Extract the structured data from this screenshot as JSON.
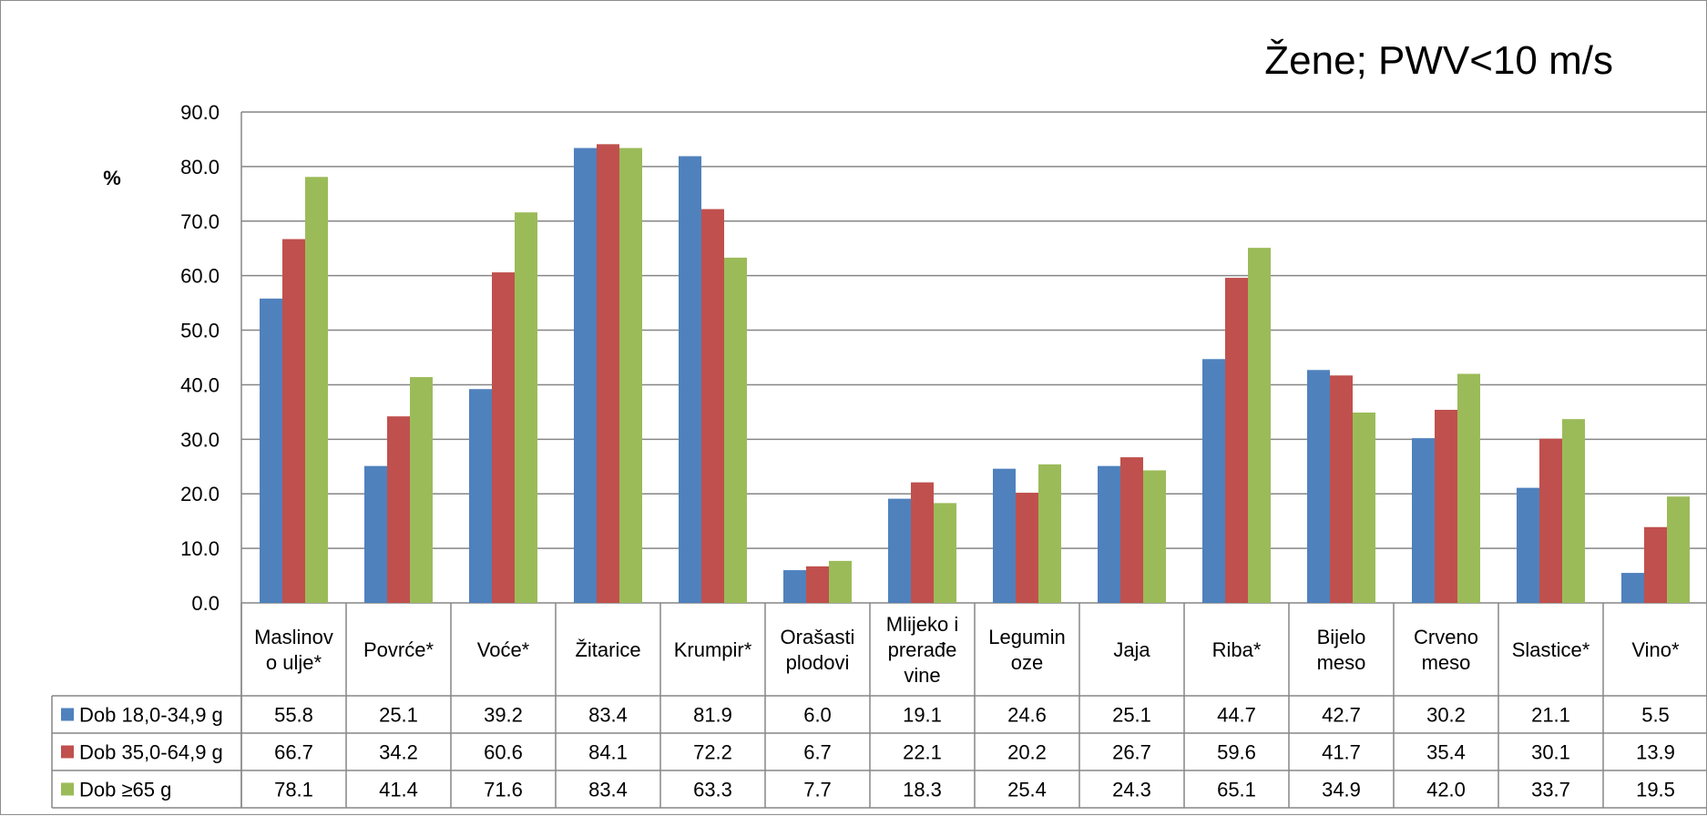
{
  "chart_data": {
    "type": "bar",
    "title": "Žene; PWV<10 m/s",
    "ylabel": "%",
    "xlabel": "",
    "ylim": [
      0,
      90
    ],
    "yticks": [
      "0.0",
      "10.0",
      "20.0",
      "30.0",
      "40.0",
      "50.0",
      "60.0",
      "70.0",
      "80.0",
      "90.0"
    ],
    "grid": true,
    "legend_placement": "data table",
    "categories": [
      [
        "Maslinov",
        "o ulje*"
      ],
      [
        "Povrće*"
      ],
      [
        "Voće*"
      ],
      [
        "Žitarice"
      ],
      [
        "Krumpir*"
      ],
      [
        "Orašasti",
        "plodovi"
      ],
      [
        "Mlijeko i",
        "prerađe",
        "vine"
      ],
      [
        "Legumin",
        "oze"
      ],
      [
        "Jaja"
      ],
      [
        "Riba*"
      ],
      [
        "Bijelo",
        "meso"
      ],
      [
        "Crveno",
        "meso"
      ],
      [
        "Slastice*"
      ],
      [
        "Vino*"
      ]
    ],
    "series": [
      {
        "name": "Dob 18,0-34,9 g",
        "color": "#4f81bd",
        "values": [
          55.8,
          25.1,
          39.2,
          83.4,
          81.9,
          6.0,
          19.1,
          24.6,
          25.1,
          44.7,
          42.7,
          30.2,
          21.1,
          5.5
        ],
        "labels": [
          "55.8",
          "25.1",
          "39.2",
          "83.4",
          "81.9",
          "6.0",
          "19.1",
          "24.6",
          "25.1",
          "44.7",
          "42.7",
          "30.2",
          "21.1",
          "5.5"
        ]
      },
      {
        "name": "Dob 35,0-64,9 g",
        "color": "#c0504d",
        "values": [
          66.7,
          34.2,
          60.6,
          84.1,
          72.2,
          6.7,
          22.1,
          20.2,
          26.7,
          59.6,
          41.7,
          35.4,
          30.1,
          13.9
        ],
        "labels": [
          "66.7",
          "34.2",
          "60.6",
          "84.1",
          "72.2",
          "6.7",
          "22.1",
          "20.2",
          "26.7",
          "59.6",
          "41.7",
          "35.4",
          "30.1",
          "13.9"
        ]
      },
      {
        "name": "Dob ≥65 g",
        "color": "#9bbb59",
        "values": [
          78.1,
          41.4,
          71.6,
          83.4,
          63.3,
          7.7,
          18.3,
          25.4,
          24.3,
          65.1,
          34.9,
          42.0,
          33.7,
          19.5
        ],
        "labels": [
          "78.1",
          "41.4",
          "71.6",
          "83.4",
          "63.3",
          "7.7",
          "18.3",
          "25.4",
          "24.3",
          "65.1",
          "34.9",
          "42.0",
          "33.7",
          "19.5"
        ]
      }
    ]
  }
}
